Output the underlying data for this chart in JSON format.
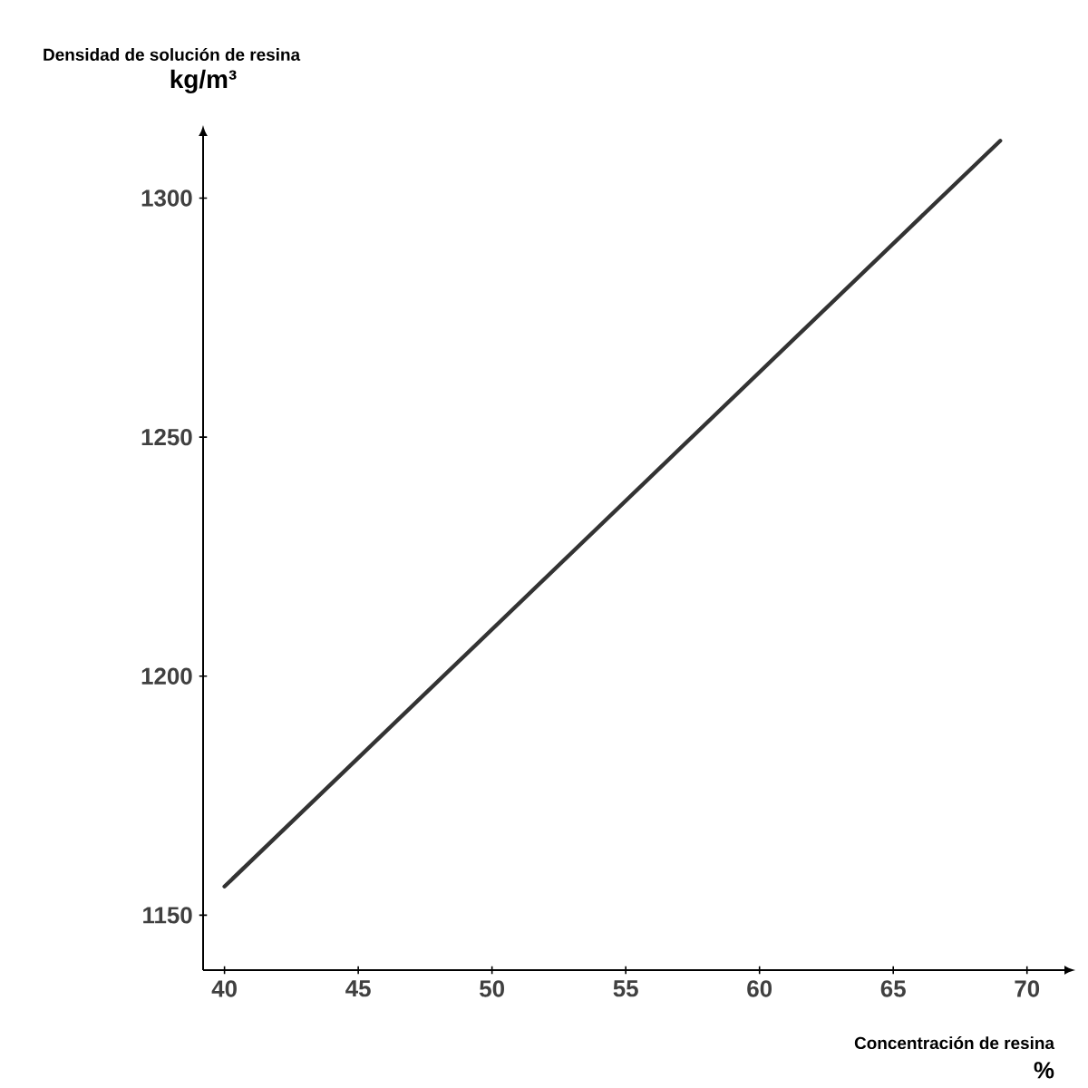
{
  "chart_data": {
    "type": "line",
    "title": "Densidad de solución de resina",
    "ylabel": "kg/m³",
    "xlabel": "Concentración de resina",
    "annotations": [
      "%"
    ],
    "x": [
      40,
      69
    ],
    "series": [
      {
        "color": "#333333",
        "values": [
          1156,
          1312
        ]
      }
    ],
    "xlim": [
      39.2,
      71.4
    ],
    "ylim": [
      1138.5,
      1313
    ],
    "xticks": [
      40,
      45,
      50,
      55,
      60,
      65,
      70
    ],
    "yticks": [
      1150,
      1200,
      1250,
      1300
    ]
  }
}
